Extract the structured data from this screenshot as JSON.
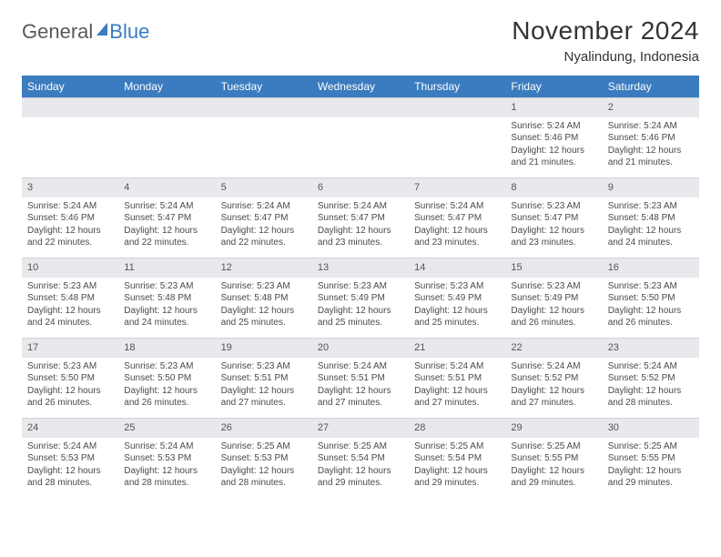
{
  "brand": {
    "part1": "General",
    "part2": "Blue"
  },
  "title": "November 2024",
  "location": "Nyalindung, Indonesia",
  "weekdays": [
    "Sunday",
    "Monday",
    "Tuesday",
    "Wednesday",
    "Thursday",
    "Friday",
    "Saturday"
  ],
  "colors": {
    "header_bg": "#3b7bbf",
    "header_text": "#ffffff",
    "daynum_bg": "#e7e9ec",
    "body_text": "#4a4a4a",
    "title_text": "#333333"
  },
  "fonts": {
    "title_size": 28,
    "location_size": 15,
    "weekday_size": 12,
    "cell_size": 10
  },
  "weeks": [
    [
      {
        "day": "",
        "sunrise": "",
        "sunset": "",
        "daylight": ""
      },
      {
        "day": "",
        "sunrise": "",
        "sunset": "",
        "daylight": ""
      },
      {
        "day": "",
        "sunrise": "",
        "sunset": "",
        "daylight": ""
      },
      {
        "day": "",
        "sunrise": "",
        "sunset": "",
        "daylight": ""
      },
      {
        "day": "",
        "sunrise": "",
        "sunset": "",
        "daylight": ""
      },
      {
        "day": "1",
        "sunrise": "Sunrise: 5:24 AM",
        "sunset": "Sunset: 5:46 PM",
        "daylight": "Daylight: 12 hours and 21 minutes."
      },
      {
        "day": "2",
        "sunrise": "Sunrise: 5:24 AM",
        "sunset": "Sunset: 5:46 PM",
        "daylight": "Daylight: 12 hours and 21 minutes."
      }
    ],
    [
      {
        "day": "3",
        "sunrise": "Sunrise: 5:24 AM",
        "sunset": "Sunset: 5:46 PM",
        "daylight": "Daylight: 12 hours and 22 minutes."
      },
      {
        "day": "4",
        "sunrise": "Sunrise: 5:24 AM",
        "sunset": "Sunset: 5:47 PM",
        "daylight": "Daylight: 12 hours and 22 minutes."
      },
      {
        "day": "5",
        "sunrise": "Sunrise: 5:24 AM",
        "sunset": "Sunset: 5:47 PM",
        "daylight": "Daylight: 12 hours and 22 minutes."
      },
      {
        "day": "6",
        "sunrise": "Sunrise: 5:24 AM",
        "sunset": "Sunset: 5:47 PM",
        "daylight": "Daylight: 12 hours and 23 minutes."
      },
      {
        "day": "7",
        "sunrise": "Sunrise: 5:24 AM",
        "sunset": "Sunset: 5:47 PM",
        "daylight": "Daylight: 12 hours and 23 minutes."
      },
      {
        "day": "8",
        "sunrise": "Sunrise: 5:23 AM",
        "sunset": "Sunset: 5:47 PM",
        "daylight": "Daylight: 12 hours and 23 minutes."
      },
      {
        "day": "9",
        "sunrise": "Sunrise: 5:23 AM",
        "sunset": "Sunset: 5:48 PM",
        "daylight": "Daylight: 12 hours and 24 minutes."
      }
    ],
    [
      {
        "day": "10",
        "sunrise": "Sunrise: 5:23 AM",
        "sunset": "Sunset: 5:48 PM",
        "daylight": "Daylight: 12 hours and 24 minutes."
      },
      {
        "day": "11",
        "sunrise": "Sunrise: 5:23 AM",
        "sunset": "Sunset: 5:48 PM",
        "daylight": "Daylight: 12 hours and 24 minutes."
      },
      {
        "day": "12",
        "sunrise": "Sunrise: 5:23 AM",
        "sunset": "Sunset: 5:48 PM",
        "daylight": "Daylight: 12 hours and 25 minutes."
      },
      {
        "day": "13",
        "sunrise": "Sunrise: 5:23 AM",
        "sunset": "Sunset: 5:49 PM",
        "daylight": "Daylight: 12 hours and 25 minutes."
      },
      {
        "day": "14",
        "sunrise": "Sunrise: 5:23 AM",
        "sunset": "Sunset: 5:49 PM",
        "daylight": "Daylight: 12 hours and 25 minutes."
      },
      {
        "day": "15",
        "sunrise": "Sunrise: 5:23 AM",
        "sunset": "Sunset: 5:49 PM",
        "daylight": "Daylight: 12 hours and 26 minutes."
      },
      {
        "day": "16",
        "sunrise": "Sunrise: 5:23 AM",
        "sunset": "Sunset: 5:50 PM",
        "daylight": "Daylight: 12 hours and 26 minutes."
      }
    ],
    [
      {
        "day": "17",
        "sunrise": "Sunrise: 5:23 AM",
        "sunset": "Sunset: 5:50 PM",
        "daylight": "Daylight: 12 hours and 26 minutes."
      },
      {
        "day": "18",
        "sunrise": "Sunrise: 5:23 AM",
        "sunset": "Sunset: 5:50 PM",
        "daylight": "Daylight: 12 hours and 26 minutes."
      },
      {
        "day": "19",
        "sunrise": "Sunrise: 5:23 AM",
        "sunset": "Sunset: 5:51 PM",
        "daylight": "Daylight: 12 hours and 27 minutes."
      },
      {
        "day": "20",
        "sunrise": "Sunrise: 5:24 AM",
        "sunset": "Sunset: 5:51 PM",
        "daylight": "Daylight: 12 hours and 27 minutes."
      },
      {
        "day": "21",
        "sunrise": "Sunrise: 5:24 AM",
        "sunset": "Sunset: 5:51 PM",
        "daylight": "Daylight: 12 hours and 27 minutes."
      },
      {
        "day": "22",
        "sunrise": "Sunrise: 5:24 AM",
        "sunset": "Sunset: 5:52 PM",
        "daylight": "Daylight: 12 hours and 27 minutes."
      },
      {
        "day": "23",
        "sunrise": "Sunrise: 5:24 AM",
        "sunset": "Sunset: 5:52 PM",
        "daylight": "Daylight: 12 hours and 28 minutes."
      }
    ],
    [
      {
        "day": "24",
        "sunrise": "Sunrise: 5:24 AM",
        "sunset": "Sunset: 5:53 PM",
        "daylight": "Daylight: 12 hours and 28 minutes."
      },
      {
        "day": "25",
        "sunrise": "Sunrise: 5:24 AM",
        "sunset": "Sunset: 5:53 PM",
        "daylight": "Daylight: 12 hours and 28 minutes."
      },
      {
        "day": "26",
        "sunrise": "Sunrise: 5:25 AM",
        "sunset": "Sunset: 5:53 PM",
        "daylight": "Daylight: 12 hours and 28 minutes."
      },
      {
        "day": "27",
        "sunrise": "Sunrise: 5:25 AM",
        "sunset": "Sunset: 5:54 PM",
        "daylight": "Daylight: 12 hours and 29 minutes."
      },
      {
        "day": "28",
        "sunrise": "Sunrise: 5:25 AM",
        "sunset": "Sunset: 5:54 PM",
        "daylight": "Daylight: 12 hours and 29 minutes."
      },
      {
        "day": "29",
        "sunrise": "Sunrise: 5:25 AM",
        "sunset": "Sunset: 5:55 PM",
        "daylight": "Daylight: 12 hours and 29 minutes."
      },
      {
        "day": "30",
        "sunrise": "Sunrise: 5:25 AM",
        "sunset": "Sunset: 5:55 PM",
        "daylight": "Daylight: 12 hours and 29 minutes."
      }
    ]
  ]
}
